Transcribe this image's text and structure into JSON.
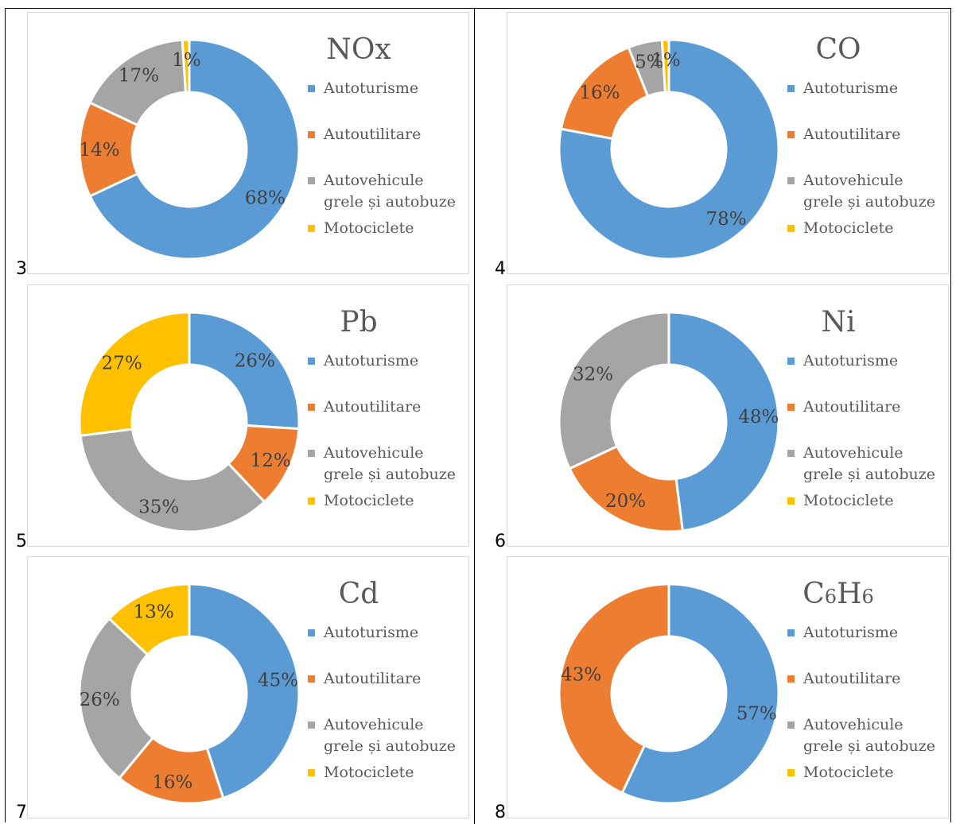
{
  "legend": [
    "Autoturisme",
    "Autoutilitare",
    "Autovehicule grele și autobuze",
    "Motociclete"
  ],
  "legend_lines": [
    [
      "Autoturisme"
    ],
    [
      "Autoutilitare"
    ],
    [
      "Autovehicule",
      "grele și autobuze"
    ],
    [
      "Motociclete"
    ]
  ],
  "colors": [
    "#5b9bd5",
    "#ed7d31",
    "#a5a5a5",
    "#ffc000"
  ],
  "chart_data": [
    {
      "type": "pie",
      "donut": true,
      "panel": "3.",
      "title": "NOx",
      "categories": [
        "Autoturisme",
        "Autoutilitare",
        "Autovehicule grele și autobuze",
        "Motociclete"
      ],
      "values": [
        68,
        14,
        17,
        1
      ],
      "labels": [
        "68%",
        "14%",
        "17%",
        "1%"
      ]
    },
    {
      "type": "pie",
      "donut": true,
      "panel": "4.",
      "title": "CO",
      "categories": [
        "Autoturisme",
        "Autoutilitare",
        "Autovehicule grele și autobuze",
        "Motociclete"
      ],
      "values": [
        78,
        16,
        5,
        1
      ],
      "labels": [
        "78%",
        "16%",
        "5%",
        "1%"
      ]
    },
    {
      "type": "pie",
      "donut": true,
      "panel": "5.",
      "title": "Pb",
      "categories": [
        "Autoturisme",
        "Autoutilitare",
        "Autovehicule grele și autobuze",
        "Motociclete"
      ],
      "values": [
        26,
        12,
        35,
        27
      ],
      "labels": [
        "26%",
        "12%",
        "35%",
        "27%"
      ]
    },
    {
      "type": "pie",
      "donut": true,
      "panel": "6.",
      "title": "Ni",
      "categories": [
        "Autoturisme",
        "Autoutilitare",
        "Autovehicule grele și autobuze",
        "Motociclete"
      ],
      "values": [
        48,
        20,
        32,
        0
      ],
      "labels": [
        "48%",
        "20%",
        "32%",
        ""
      ]
    },
    {
      "type": "pie",
      "donut": true,
      "panel": "7.",
      "title": "Cd",
      "categories": [
        "Autoturisme",
        "Autoutilitare",
        "Autovehicule grele și autobuze",
        "Motociclete"
      ],
      "values": [
        45,
        16,
        26,
        13
      ],
      "labels": [
        "45%",
        "16%",
        "26%",
        "13%"
      ]
    },
    {
      "type": "pie",
      "donut": true,
      "panel": "8.",
      "title": "C6H6",
      "title_base": "C",
      "title_sub1": "6",
      "title_mid": "H",
      "title_sub2": "6",
      "categories": [
        "Autoturisme",
        "Autoutilitare",
        "Autovehicule grele și autobuze",
        "Motociclete"
      ],
      "values": [
        57,
        43,
        0,
        0
      ],
      "labels": [
        "57%",
        "43%",
        "",
        ""
      ]
    }
  ]
}
